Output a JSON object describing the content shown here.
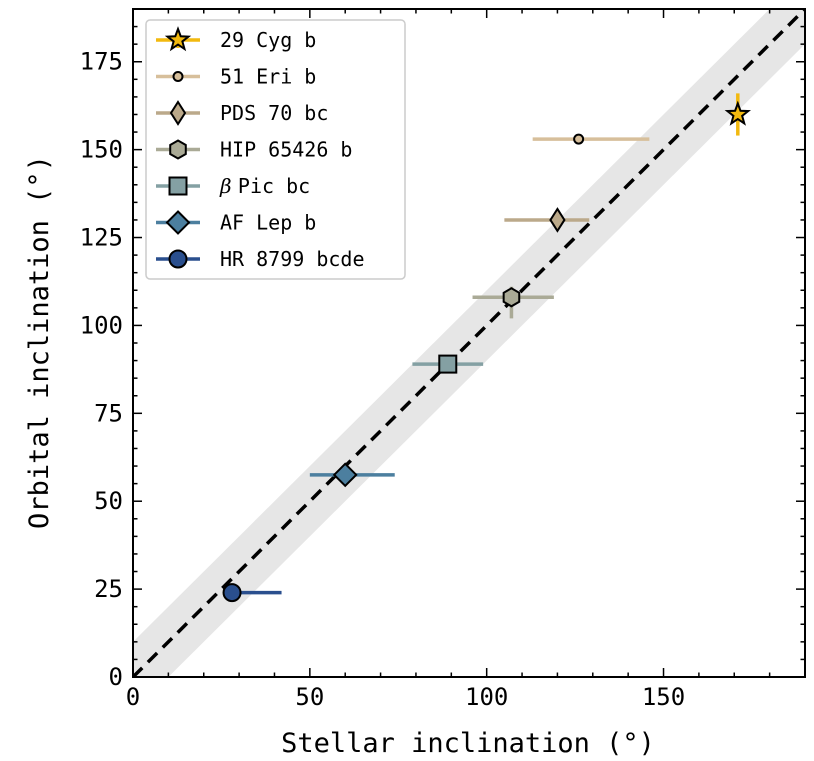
{
  "chart_data": {
    "type": "scatter",
    "xlabel": "Stellar inclination (°)",
    "ylabel": "Orbital inclination (°)",
    "xlim": [
      0,
      190
    ],
    "ylim": [
      0,
      190
    ],
    "x_ticks": [
      0,
      50,
      100,
      150
    ],
    "y_ticks": [
      0,
      25,
      50,
      75,
      100,
      125,
      150,
      175
    ],
    "x_minor_step": 10,
    "y_minor_step": 5,
    "grid": false,
    "legend_position": "top-left",
    "reference_line": {
      "style": "dashed",
      "color": "#000000",
      "band_halfwidth": 10,
      "band_color": "#e6e6e6"
    },
    "series": [
      {
        "name": "29 Cyg b",
        "marker": "star",
        "color": "#f2b90f",
        "x": 171,
        "y": 160,
        "xerr": [
          0,
          0
        ],
        "yerr": [
          6,
          6
        ]
      },
      {
        "name": "51 Eri b",
        "marker": "circle-small",
        "color": "#d7bf9b",
        "x": 126,
        "y": 153,
        "xerr": [
          13,
          20
        ],
        "yerr": [
          0,
          0
        ]
      },
      {
        "name": "PDS 70 bc",
        "marker": "diamond",
        "color": "#bba98a",
        "x": 120,
        "y": 130,
        "xerr": [
          15,
          9
        ],
        "yerr": [
          0,
          0
        ]
      },
      {
        "name": "HIP 65426 b",
        "marker": "hexagon",
        "color": "#aaaa96",
        "x": 107,
        "y": 108,
        "xerr": [
          11,
          12
        ],
        "yerr": [
          6,
          3
        ]
      },
      {
        "name": "Pic bc",
        "label_prefix": "β",
        "marker": "square",
        "color": "#84a0a3",
        "x": 89,
        "y": 89,
        "xerr": [
          10,
          10
        ],
        "yerr": [
          0,
          0
        ]
      },
      {
        "name": "AF Lep b",
        "marker": "diamond-large",
        "color": "#4c7f9f",
        "x": 60,
        "y": 57.5,
        "xerr": [
          10,
          14
        ],
        "yerr": [
          0,
          0
        ]
      },
      {
        "name": "HR 8799 bcde",
        "marker": "circle",
        "color": "#2a4f8e",
        "x": 28,
        "y": 24,
        "xerr": [
          0,
          14
        ],
        "yerr": [
          0,
          0
        ]
      }
    ]
  }
}
